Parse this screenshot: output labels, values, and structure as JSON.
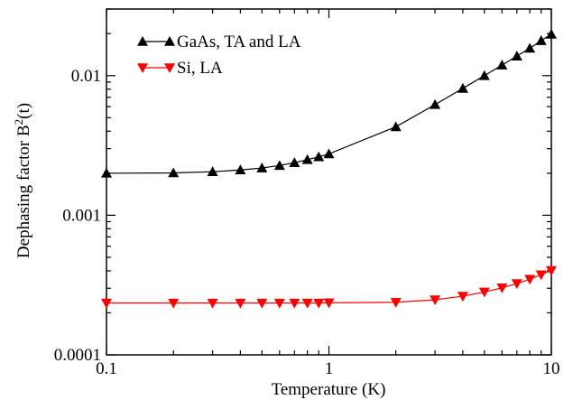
{
  "chart_data": {
    "type": "line",
    "xlabel": "Temperature (K)",
    "ylabel": "Dephasing factor B",
    "ylabel_sup": "2",
    "ylabel_suffix": "(t)",
    "xscale": "log",
    "yscale": "log",
    "xlim": [
      0.1,
      10
    ],
    "ylim": [
      0.0001,
      0.03
    ],
    "x_tick_labels": [
      "0.1",
      "1",
      "10"
    ],
    "x_ticks": [
      0.1,
      1,
      10
    ],
    "y_tick_labels": [
      "0.0001",
      "0.001",
      "0.01"
    ],
    "y_ticks": [
      0.0001,
      0.001,
      0.01
    ],
    "grid": false,
    "legend_position": "top-left",
    "series": [
      {
        "name": "GaAs, TA and LA",
        "color": "#000000",
        "marker": "triangle-up",
        "x": [
          0.1,
          0.2,
          0.3,
          0.4,
          0.5,
          0.6,
          0.7,
          0.8,
          0.9,
          1,
          2,
          3,
          4,
          5,
          6,
          7,
          8,
          9,
          10
        ],
        "y": [
          0.002,
          0.00201,
          0.00205,
          0.00211,
          0.00218,
          0.00227,
          0.00238,
          0.0025,
          0.00262,
          0.00275,
          0.0043,
          0.0062,
          0.0081,
          0.01,
          0.0119,
          0.0138,
          0.0157,
          0.0178,
          0.0198
        ]
      },
      {
        "name": "Si, LA",
        "color": "#ff0000",
        "marker": "triangle-down",
        "x": [
          0.1,
          0.2,
          0.3,
          0.4,
          0.5,
          0.6,
          0.7,
          0.8,
          0.9,
          1,
          2,
          3,
          4,
          5,
          6,
          7,
          8,
          9,
          10
        ],
        "y": [
          0.000235,
          0.000235,
          0.000235,
          0.000235,
          0.000235,
          0.000235,
          0.000235,
          0.000235,
          0.000235,
          0.000236,
          0.000238,
          0.000248,
          0.000263,
          0.000282,
          0.000302,
          0.000324,
          0.000348,
          0.000375,
          0.000402
        ]
      }
    ]
  }
}
